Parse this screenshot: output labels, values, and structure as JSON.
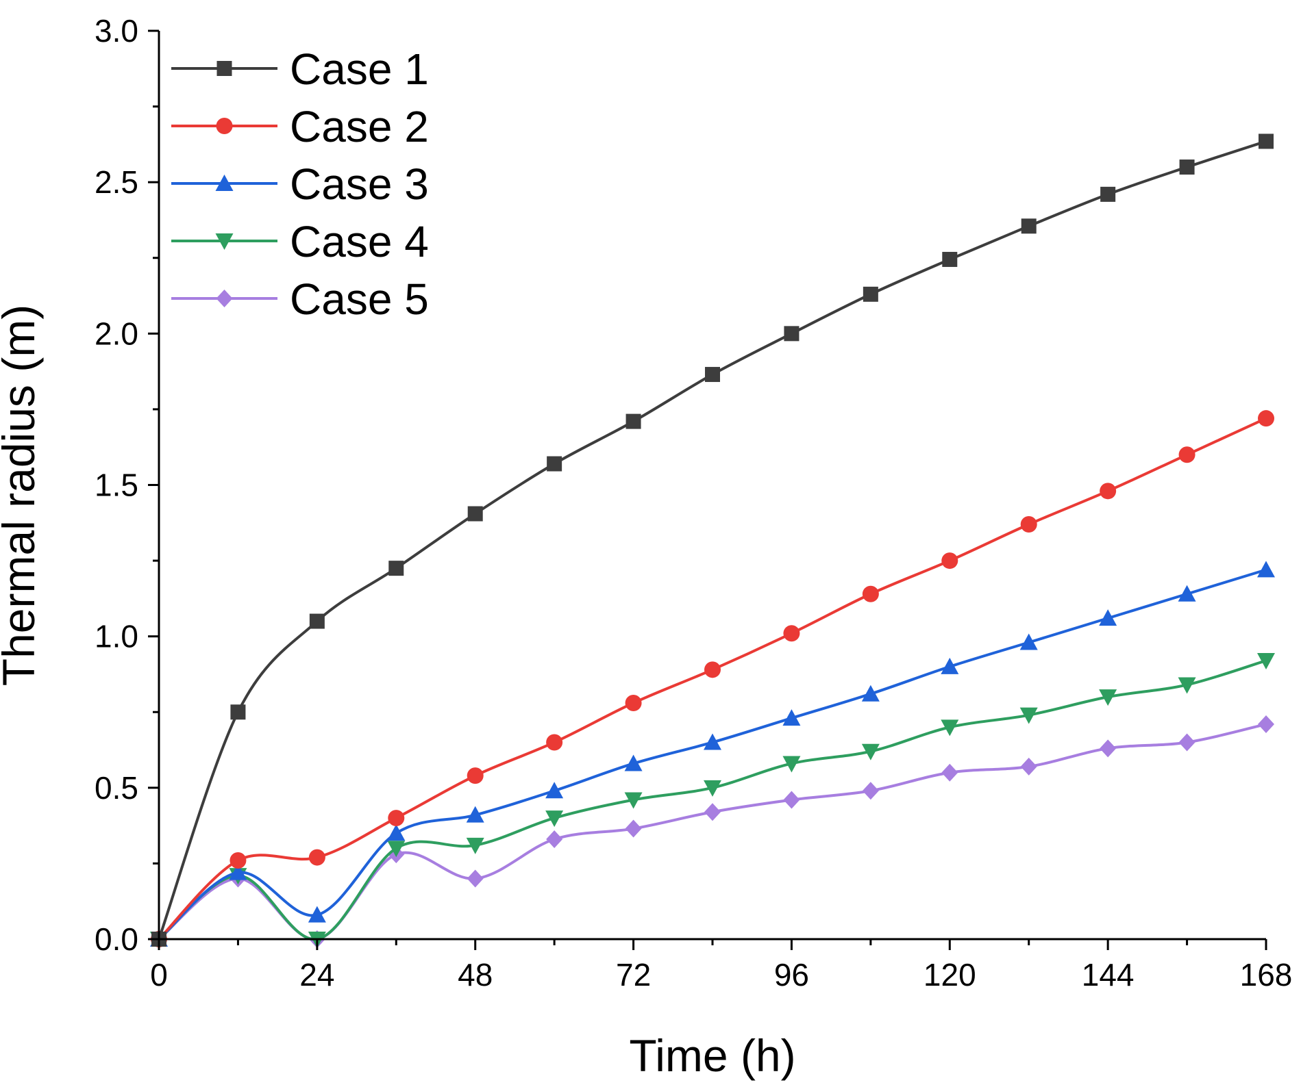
{
  "chart_data": {
    "type": "line",
    "title": "",
    "xlabel": "Time (h)",
    "ylabel": "Thermal radius (m)",
    "xlim": [
      0,
      168
    ],
    "ylim": [
      0,
      3.0
    ],
    "x_ticks": [
      0,
      24,
      48,
      72,
      96,
      120,
      144,
      168
    ],
    "x_tick_labels": [
      "0",
      "24",
      "48",
      "72",
      "96",
      "120",
      "144",
      "168"
    ],
    "y_ticks": [
      0,
      0.5,
      1.0,
      1.5,
      2.0,
      2.5,
      3.0
    ],
    "y_tick_labels": [
      "0.0",
      "0.5",
      "1.0",
      "1.5",
      "2.0",
      "2.5",
      "3.0"
    ],
    "grid": false,
    "legend_position": "top-left",
    "x": [
      0,
      12,
      24,
      36,
      48,
      60,
      72,
      84,
      96,
      108,
      120,
      132,
      144,
      156,
      168
    ],
    "series": [
      {
        "name": "Case 1",
        "color": "#3d3d3d",
        "marker": "square",
        "values": [
          0,
          0.75,
          1.05,
          1.225,
          1.405,
          1.57,
          1.71,
          1.865,
          2.0,
          2.13,
          2.245,
          2.355,
          2.46,
          2.55,
          2.635
        ]
      },
      {
        "name": "Case 2",
        "color": "#ea3a35",
        "marker": "circle",
        "values": [
          0,
          0.26,
          0.27,
          0.4,
          0.54,
          0.65,
          0.78,
          0.89,
          1.01,
          1.14,
          1.25,
          1.37,
          1.48,
          1.6,
          1.72
        ]
      },
      {
        "name": "Case 3",
        "color": "#1f62d9",
        "marker": "triangle-up",
        "values": [
          0,
          0.22,
          0.08,
          0.35,
          0.41,
          0.49,
          0.58,
          0.65,
          0.73,
          0.81,
          0.9,
          0.98,
          1.06,
          1.14,
          1.22
        ]
      },
      {
        "name": "Case 4",
        "color": "#2e9e5f",
        "marker": "triangle-down",
        "values": [
          0,
          0.21,
          0.0,
          0.3,
          0.31,
          0.4,
          0.46,
          0.5,
          0.58,
          0.62,
          0.7,
          0.74,
          0.8,
          0.84,
          0.92
        ]
      },
      {
        "name": "Case 5",
        "color": "#a77ee0",
        "marker": "diamond",
        "values": [
          0,
          0.2,
          0.0,
          0.28,
          0.2,
          0.33,
          0.365,
          0.42,
          0.46,
          0.49,
          0.55,
          0.57,
          0.63,
          0.65,
          0.71
        ]
      }
    ]
  }
}
